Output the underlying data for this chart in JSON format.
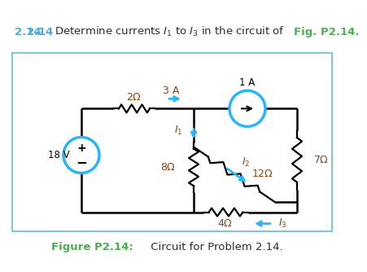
{
  "title_num": "2.14",
  "title_num_color": "#4fa8d5",
  "title_text": "   Determine currents ",
  "title_I1": "I",
  "title_sub1": "1",
  "title_to": " to ",
  "title_I3": "I",
  "title_sub3": "3",
  "title_rest": " in the circuit of ",
  "title_ref": "Fig. P2.14.",
  "title_ref_color": "#4caf50",
  "text_color": "#333333",
  "fig_label": "Figure P2.14:",
  "fig_label_color": "#4caf50",
  "fig_caption": " Circuit for Problem 2.14.",
  "border_color": "#80CBC4",
  "bg_color": "#ffffff",
  "source_color": "#29B6F6",
  "wire_color": "#000000",
  "arrow_color": "#29B6F6",
  "label_color": "#8B4513",
  "current_arrow_color": "#29B6F6"
}
